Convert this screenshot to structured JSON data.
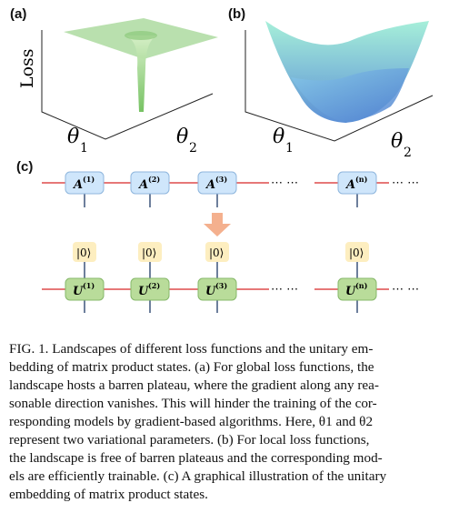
{
  "panels": {
    "a": {
      "label": "(a)",
      "ylabel": "Loss",
      "x1": "θ",
      "x1_sub": "1",
      "x2": "θ",
      "x2_sub": "2"
    },
    "b": {
      "label": "(b)",
      "x1": "θ",
      "x1_sub": "1",
      "x2": "θ",
      "x2_sub": "2"
    },
    "c": {
      "label": "(c)",
      "top_row": [
        "A",
        "A",
        "A",
        "A"
      ],
      "top_sup": [
        "(1)",
        "(2)",
        "(3)",
        "(n)"
      ],
      "bottom_row": [
        "U",
        "U",
        "U",
        "U"
      ],
      "bottom_sup": [
        "(1)",
        "(2)",
        "(3)",
        "(n)"
      ],
      "ket": "|0⟩",
      "dots": "⋯ ⋯"
    }
  },
  "caption": {
    "lines": [
      "FIG. 1. Landscapes of different loss functions and the unitary em-",
      "bedding of matrix product states. (a) For global loss functions, the",
      "landscape hosts a barren plateau, where the gradient along any rea-",
      "sonable direction vanishes. This will hinder the training of the cor-",
      "responding models by gradient-based algorithms. Here, θ1 and θ2",
      "represent two variational parameters. (b) For local loss functions,",
      "the landscape is free of barren plateaus and the corresponding mod-",
      "els are efficiently trainable. (c) A graphical illustration of the unitary",
      "embedding of matrix product states."
    ]
  },
  "colors": {
    "a_box": "#cfe6fb",
    "a_border": "#8fb6dd",
    "u_box": "#b9dc9a",
    "u_border": "#86b86a",
    "ket_box": "#fdeec0",
    "arrow": "#f4b08e",
    "wire": "#d62828",
    "plateau": "#a8d89a",
    "bowl_top": "#9fe8d6",
    "bowl_bottom": "#5b8fd6"
  }
}
